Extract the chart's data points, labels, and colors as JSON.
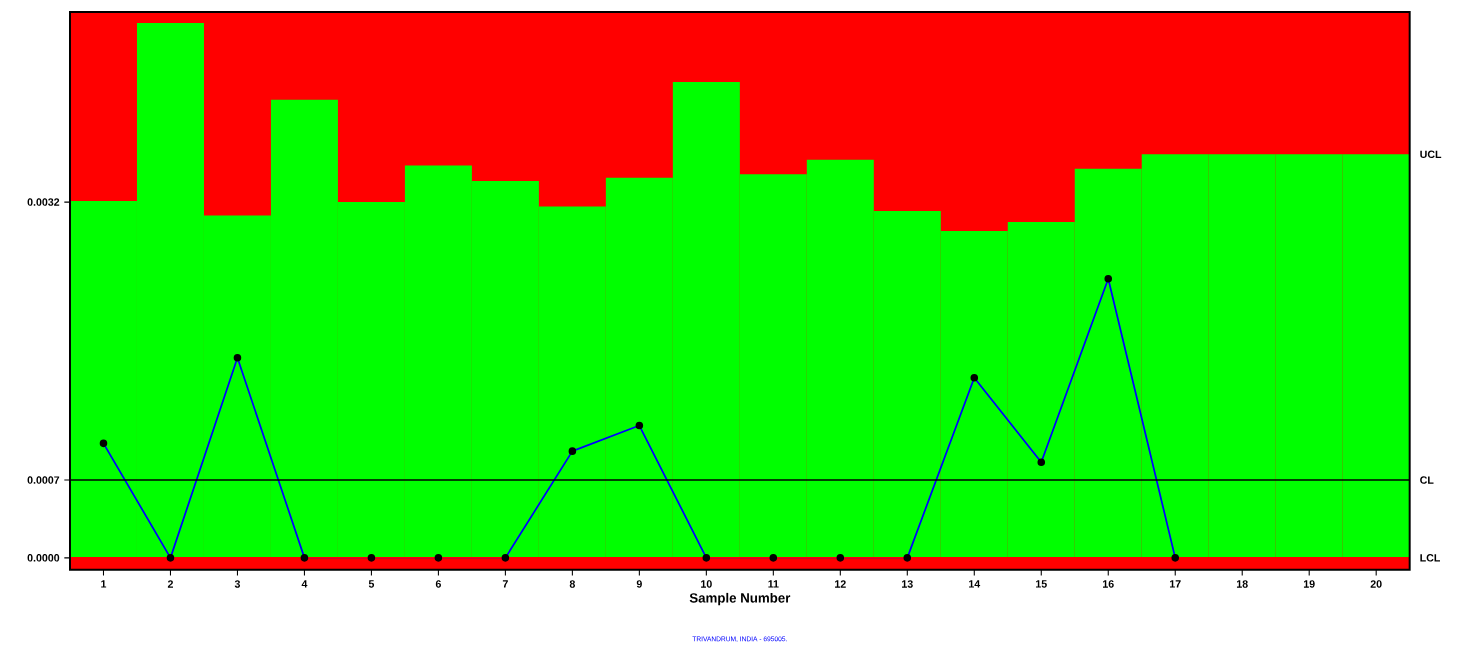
{
  "chart_data": {
    "type": "bar",
    "xlabel": "Sample Number",
    "categories": [
      "1",
      "2",
      "3",
      "4",
      "5",
      "6",
      "7",
      "8",
      "9",
      "10",
      "11",
      "12",
      "13",
      "14",
      "15",
      "16",
      "17",
      "18",
      "19",
      "20"
    ],
    "series": [
      {
        "color": "#00ff00",
        "values": [
          0.00321,
          0.00481,
          0.00308,
          0.00412,
          0.0032,
          0.00353,
          0.00339,
          0.00316,
          0.00342,
          0.00428,
          0.00345,
          0.00358,
          0.00312,
          0.00294,
          0.00302,
          0.0035,
          0.00363,
          0.00363,
          0.00363,
          0.00363
        ]
      },
      {
        "type": "line",
        "color": "#0000ff",
        "values": [
          0.00103,
          0,
          0.0018,
          0,
          0,
          0,
          0,
          0.00096,
          0.00119,
          0,
          0,
          0,
          0,
          0.00162,
          0.00086,
          0.00251,
          0,
          null,
          null,
          null
        ]
      }
    ],
    "marker": "circle",
    "line_style": "solid",
    "ylim": [
      -0.000108,
      0.00491
    ],
    "yticks": [
      {
        "value": 0,
        "label": "0.0000"
      },
      {
        "value": 0.0007,
        "label": "0.0007"
      },
      {
        "value": 0.0032,
        "label": "0.0032"
      }
    ],
    "bands": [
      {
        "axis": "y",
        "from": -0.000108,
        "to": 0.00491,
        "color": "#ff0000"
      }
    ],
    "ref_lines": [
      {
        "axis": "y",
        "value": 0.0007,
        "color": "#000000",
        "label": "CL"
      },
      {
        "axis": "y",
        "value": 0,
        "color": "#ff0000",
        "label": "LCL"
      }
    ],
    "annotations": [
      "UCL",
      "TRIVANDRUM, INDIA - 695005."
    ]
  }
}
